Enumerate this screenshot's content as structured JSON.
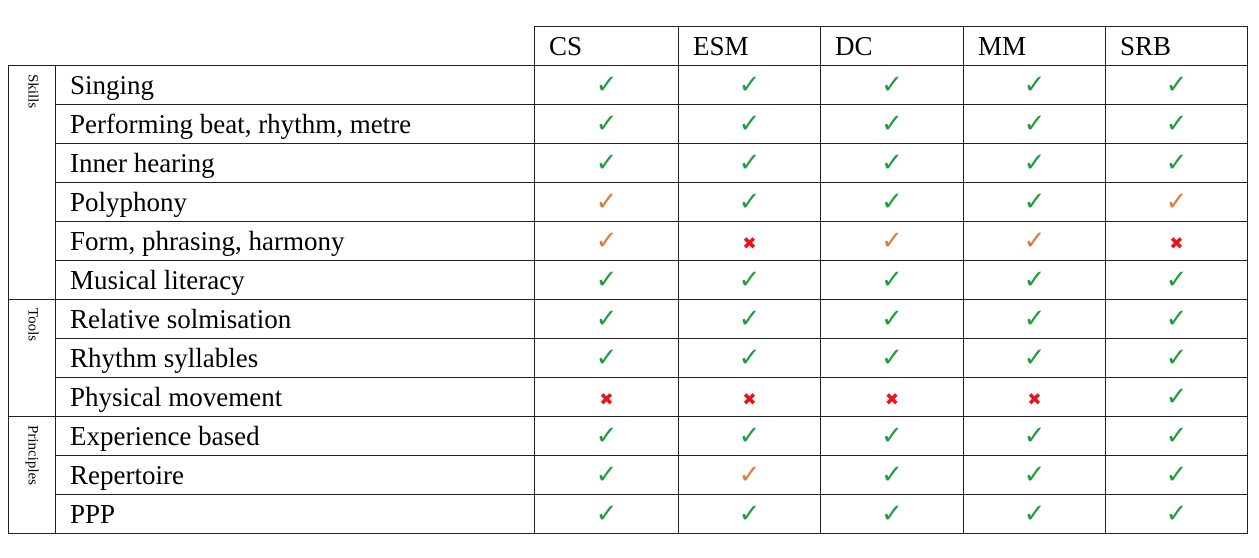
{
  "columns": [
    "CS",
    "ESM",
    "DC",
    "MM",
    "SRB"
  ],
  "colors": {
    "yes": "#1e9e3e",
    "partial": "#e07b39",
    "no": "#e8141c"
  },
  "icons": {
    "yes": "check-icon",
    "partial": "check-icon",
    "no": "cross-icon"
  },
  "groups": [
    {
      "name": "Skills",
      "rows": [
        {
          "label": "Singing",
          "values": [
            "yes",
            "yes",
            "yes",
            "yes",
            "yes"
          ]
        },
        {
          "label": "Performing beat, rhythm, metre",
          "values": [
            "yes",
            "yes",
            "yes",
            "yes",
            "yes"
          ]
        },
        {
          "label": "Inner hearing",
          "values": [
            "yes",
            "yes",
            "yes",
            "yes",
            "yes"
          ]
        },
        {
          "label": "Polyphony",
          "values": [
            "partial",
            "yes",
            "yes",
            "yes",
            "partial"
          ]
        },
        {
          "label": "Form, phrasing, harmony",
          "values": [
            "partial",
            "no",
            "partial",
            "partial",
            "no"
          ]
        },
        {
          "label": "Musical literacy",
          "values": [
            "yes",
            "yes",
            "yes",
            "yes",
            "yes"
          ]
        }
      ]
    },
    {
      "name": "Tools",
      "rows": [
        {
          "label": "Relative solmisation",
          "values": [
            "yes",
            "yes",
            "yes",
            "yes",
            "yes"
          ]
        },
        {
          "label": "Rhythm syllables",
          "values": [
            "yes",
            "yes",
            "yes",
            "yes",
            "yes"
          ]
        },
        {
          "label": "Physical movement",
          "values": [
            "no",
            "no",
            "no",
            "no",
            "yes"
          ]
        }
      ]
    },
    {
      "name": "Principles",
      "rows": [
        {
          "label": "Experience based",
          "values": [
            "yes",
            "yes",
            "yes",
            "yes",
            "yes"
          ]
        },
        {
          "label": "Repertoire",
          "values": [
            "yes",
            "partial",
            "yes",
            "yes",
            "yes"
          ]
        },
        {
          "label": "PPP",
          "values": [
            "yes",
            "yes",
            "yes",
            "yes",
            "yes"
          ]
        }
      ]
    }
  ]
}
